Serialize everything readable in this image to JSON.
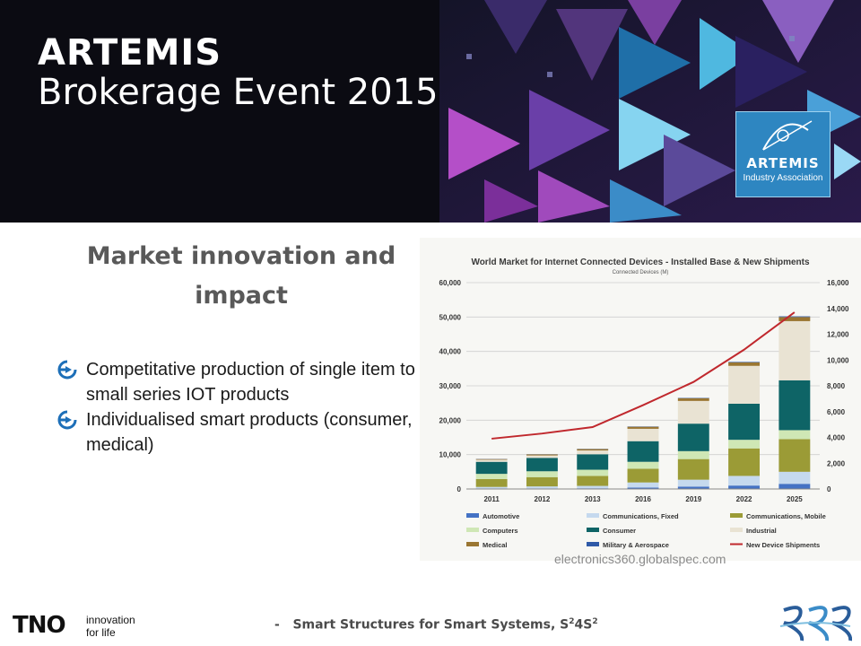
{
  "banner": {
    "title_line1": "ARTEMIS",
    "title_line2": "Brokerage Event 2015",
    "logo_name": "ARTEMIS",
    "logo_sub": "Industry Association"
  },
  "heading": "Market innovation and impact",
  "bullets": [
    "Competitative production of single item to small series IOT products",
    "Individualised smart products (consumer, medical)"
  ],
  "credit": "electronics360.globalspec.com",
  "footer": {
    "dash": "-",
    "text_main": "Smart Structures for Smart Systems, S",
    "sup1": "2",
    "mid": "4S",
    "sup2": "2",
    "tno": "TNO",
    "tno_tag_line1": "innovation",
    "tno_tag_line2": "for life"
  },
  "chart_data": {
    "type": "bar",
    "stacked": true,
    "title": "World Market for Internet Connected Devices - Installed Base & New Shipments",
    "subtitle": "Connected Devices (M)",
    "categories": [
      "2011",
      "2012",
      "2013",
      "2016",
      "2019",
      "2022",
      "2025"
    ],
    "ylim": [
      0,
      60000
    ],
    "yticks": [
      "0",
      "10,000",
      "20,000",
      "30,000",
      "40,000",
      "50,000",
      "60,000"
    ],
    "y2lim": [
      0,
      16000
    ],
    "y2ticks": [
      "0",
      "2,000",
      "4,000",
      "6,000",
      "8,000",
      "10,000",
      "12,000",
      "14,000",
      "16,000"
    ],
    "grid": true,
    "legend": "bottom",
    "series": [
      {
        "name": "Automotive",
        "color": "#4472c4",
        "values": [
          100,
          150,
          200,
          400,
          700,
          1000,
          1500
        ]
      },
      {
        "name": "Communications, Fixed",
        "color": "#c5d9ee",
        "values": [
          500,
          600,
          700,
          1500,
          2000,
          2800,
          3500
        ]
      },
      {
        "name": "Communications, Mobile",
        "color": "#9b9b36",
        "values": [
          2300,
          2700,
          2900,
          4000,
          6000,
          8000,
          9500
        ]
      },
      {
        "name": "Computers",
        "color": "#cfe7b5",
        "values": [
          1500,
          1700,
          1800,
          2000,
          2300,
          2500,
          2600
        ]
      },
      {
        "name": "Consumer",
        "color": "#0e6466",
        "values": [
          3500,
          3900,
          4500,
          6000,
          8000,
          10500,
          14500
        ]
      },
      {
        "name": "Industrial",
        "color": "#e9e3d3",
        "values": [
          600,
          700,
          1100,
          3600,
          6600,
          11000,
          17200
        ]
      },
      {
        "name": "Medical",
        "color": "#9a7632",
        "values": [
          200,
          300,
          400,
          600,
          800,
          1000,
          1200
        ]
      },
      {
        "name": "Military & Aerospace",
        "color": "#2f5aa8",
        "values": [
          50,
          50,
          60,
          80,
          100,
          150,
          200
        ]
      }
    ],
    "line_series": {
      "name": "New Device Shipments",
      "color": "#c0282d",
      "axis": "right",
      "values": [
        3900,
        4300,
        4800,
        6500,
        8300,
        10800,
        13700
      ]
    }
  }
}
